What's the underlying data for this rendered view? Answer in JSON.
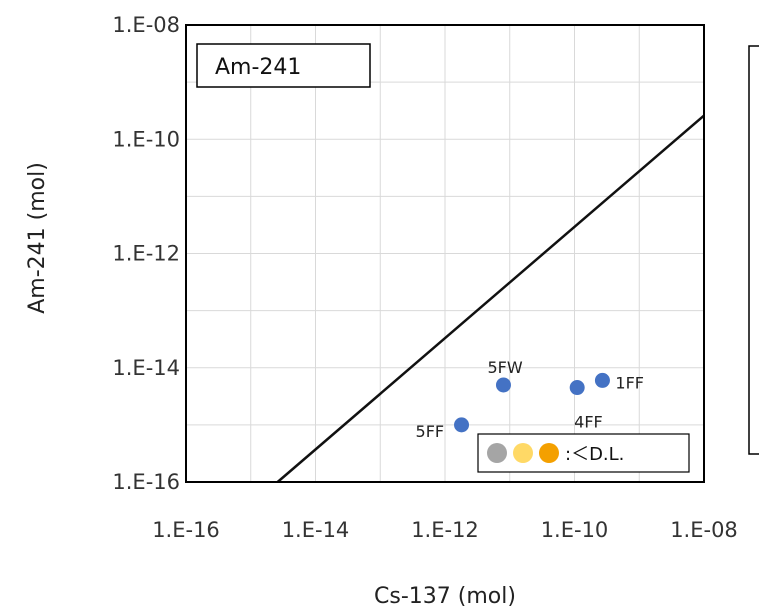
{
  "chart_data": {
    "type": "scatter",
    "xlabel": "Cs-137 (mol)",
    "ylabel": "Am-241 (mol)",
    "x_scale": "log",
    "y_scale": "log",
    "xlim": [
      1e-16,
      1e-08
    ],
    "ylim": [
      1e-16,
      1e-08
    ],
    "grid": true,
    "x_ticks": [
      1e-16,
      1e-14,
      1e-12,
      1e-10,
      1e-08
    ],
    "y_ticks": [
      1e-16,
      1e-14,
      1e-12,
      1e-10,
      1e-08
    ],
    "x_tick_labels": [
      "1.E-16",
      "1.E-14",
      "1.E-12",
      "1.E-10",
      "1.E-08"
    ],
    "y_tick_labels": [
      "1.E-16",
      "1.E-14",
      "1.E-12",
      "1.E-10",
      "1.E-08"
    ],
    "series": [
      {
        "color": "#4472C4",
        "points": [
          {
            "label": "5FF",
            "x": 1.8e-12,
            "y": 1e-15
          },
          {
            "label": "5FW",
            "x": 8e-12,
            "y": 5e-15
          },
          {
            "label": "4FF",
            "x": 1.1e-10,
            "y": 4.5e-15
          },
          {
            "label": "1FF",
            "x": 2.7e-10,
            "y": 6e-15
          }
        ]
      }
    ],
    "reference_line": {
      "x": [
        2.6e-15,
        1e-08
      ],
      "y": [
        1e-16,
        2.6e-10
      ]
    },
    "annotation_box": "Am-241",
    "detection_limit_legend": {
      "label": ":＜D.L.",
      "colors": [
        "#A5A5A5",
        "#FFD966",
        "#F4A000"
      ]
    }
  }
}
